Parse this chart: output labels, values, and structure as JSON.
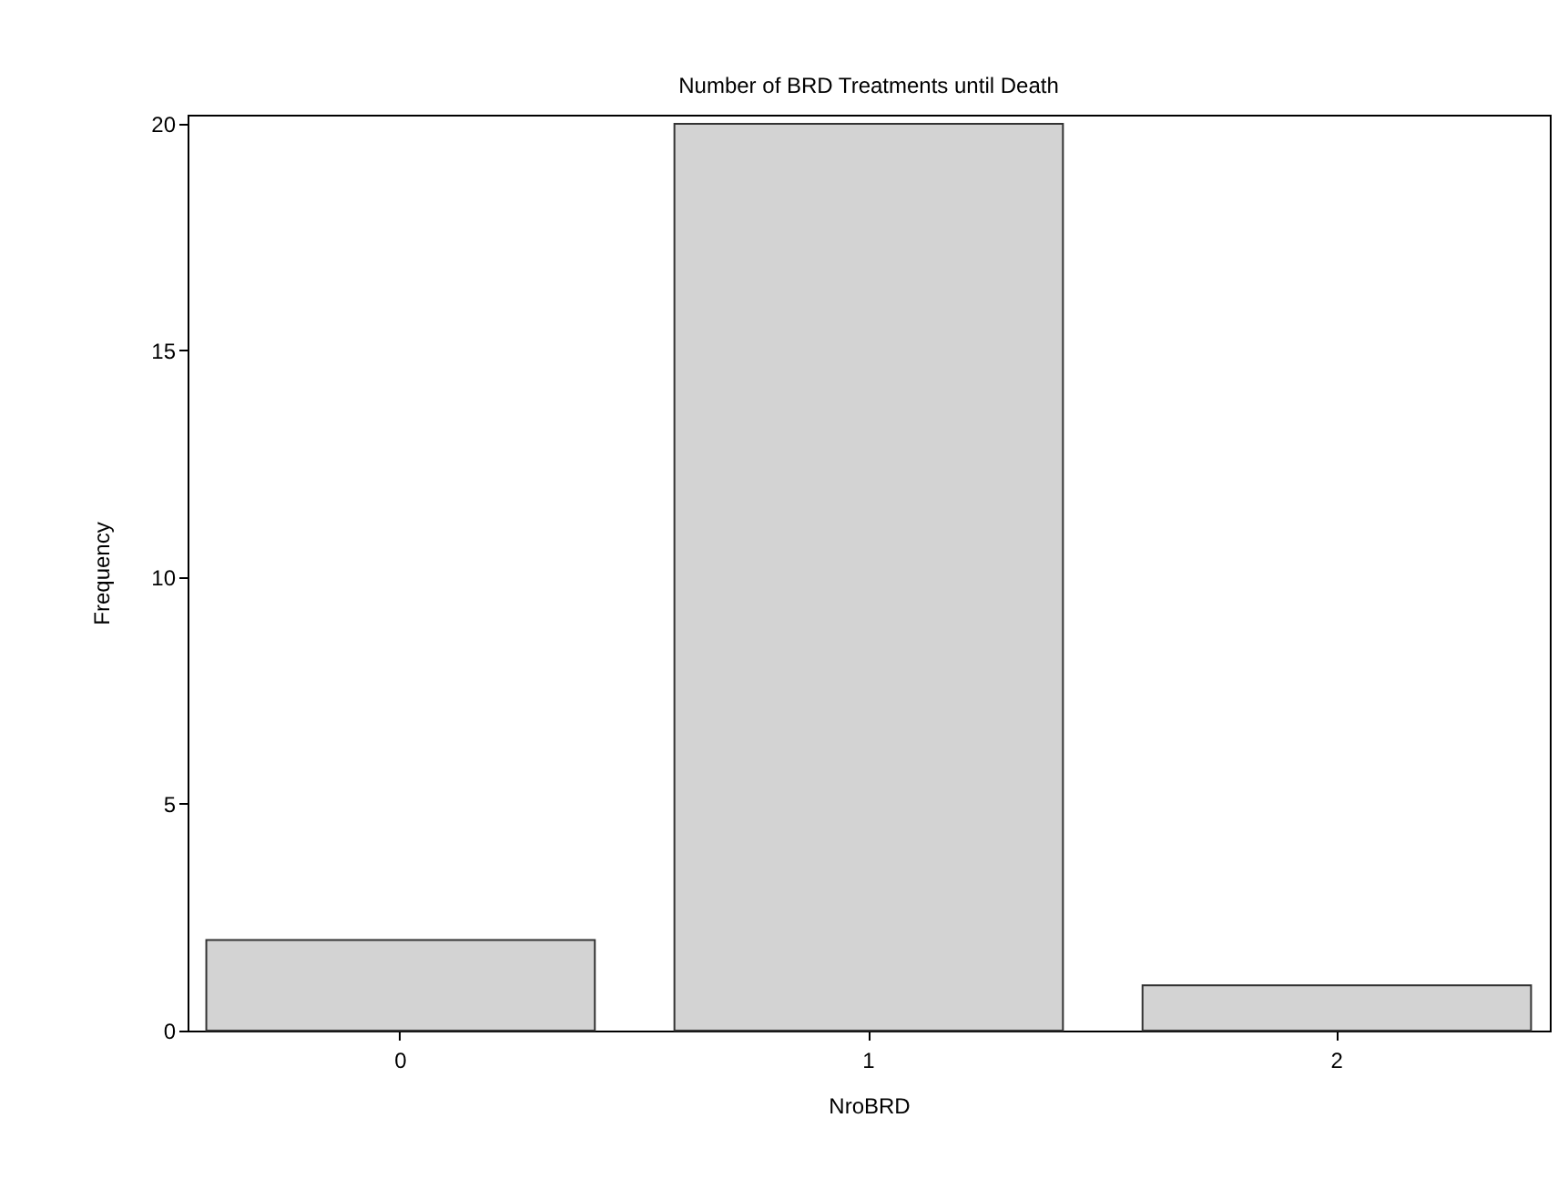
{
  "chart_data": {
    "type": "bar",
    "title": "Number of BRD Treatments until Death",
    "xlabel": "NroBRD",
    "ylabel": "Frequency",
    "categories": [
      "0",
      "1",
      "2"
    ],
    "values": [
      2,
      20,
      1
    ],
    "color": "#d3d3d3",
    "ylim": [
      0,
      20.2
    ],
    "yticks": [
      0,
      5,
      10,
      15,
      20
    ],
    "grid": false
  }
}
